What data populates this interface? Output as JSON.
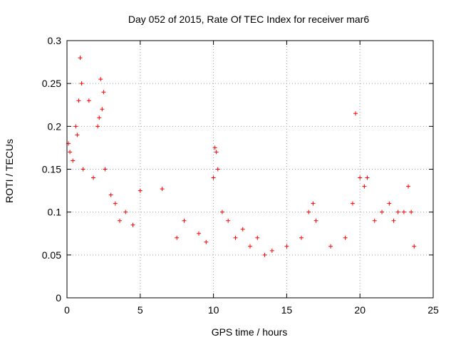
{
  "chart_data": {
    "type": "scatter",
    "title": "Day 052 of 2015, Rate Of TEC Index for receiver mar6",
    "xlabel": "GPS time / hours",
    "ylabel": "ROTI / TECUs",
    "xlim": [
      0,
      25
    ],
    "ylim": [
      0,
      0.3
    ],
    "xticks": [
      0,
      5,
      10,
      15,
      20,
      25
    ],
    "yticks": [
      0,
      0.05,
      0.1,
      0.15,
      0.2,
      0.25,
      0.3
    ],
    "xtick_labels": [
      "0",
      "5",
      "10",
      "15",
      "20",
      "25"
    ],
    "ytick_labels": [
      "0",
      "0.05",
      "0.1",
      "0.15",
      "0.2",
      "0.25",
      "0.3"
    ],
    "grid": true,
    "marker": "+",
    "color": "#ff0000",
    "series": [
      {
        "x": [
          0.9,
          1.0,
          0.6,
          0.8,
          2.3,
          2.5,
          1.5,
          2.4,
          0.1,
          0.2,
          0.4,
          0.7,
          1.1,
          1.8,
          2.1,
          2.2,
          2.6,
          3.0,
          3.3,
          3.6,
          4.0,
          4.5,
          5.0,
          6.5,
          7.5,
          8.0,
          9.0,
          9.5,
          10.0,
          10.1,
          10.2,
          10.3,
          10.6,
          11.0,
          11.5,
          12.0,
          12.5,
          13.0,
          13.5,
          14.0,
          15.0,
          16.0,
          16.5,
          16.8,
          17.0,
          18.0,
          19.0,
          19.5,
          19.7,
          20.0,
          20.3,
          20.5,
          21.0,
          21.5,
          22.0,
          22.3,
          22.6,
          23.0,
          23.3,
          23.5,
          23.7
        ],
        "y": [
          0.28,
          0.25,
          0.2,
          0.23,
          0.255,
          0.24,
          0.23,
          0.22,
          0.18,
          0.17,
          0.16,
          0.19,
          0.15,
          0.14,
          0.2,
          0.21,
          0.15,
          0.12,
          0.11,
          0.09,
          0.1,
          0.085,
          0.125,
          0.127,
          0.07,
          0.09,
          0.075,
          0.065,
          0.14,
          0.175,
          0.17,
          0.15,
          0.1,
          0.09,
          0.07,
          0.08,
          0.06,
          0.07,
          0.05,
          0.055,
          0.06,
          0.07,
          0.1,
          0.11,
          0.09,
          0.06,
          0.07,
          0.11,
          0.215,
          0.14,
          0.13,
          0.14,
          0.09,
          0.1,
          0.11,
          0.09,
          0.1,
          0.1,
          0.13,
          0.1,
          0.06
        ]
      }
    ]
  }
}
